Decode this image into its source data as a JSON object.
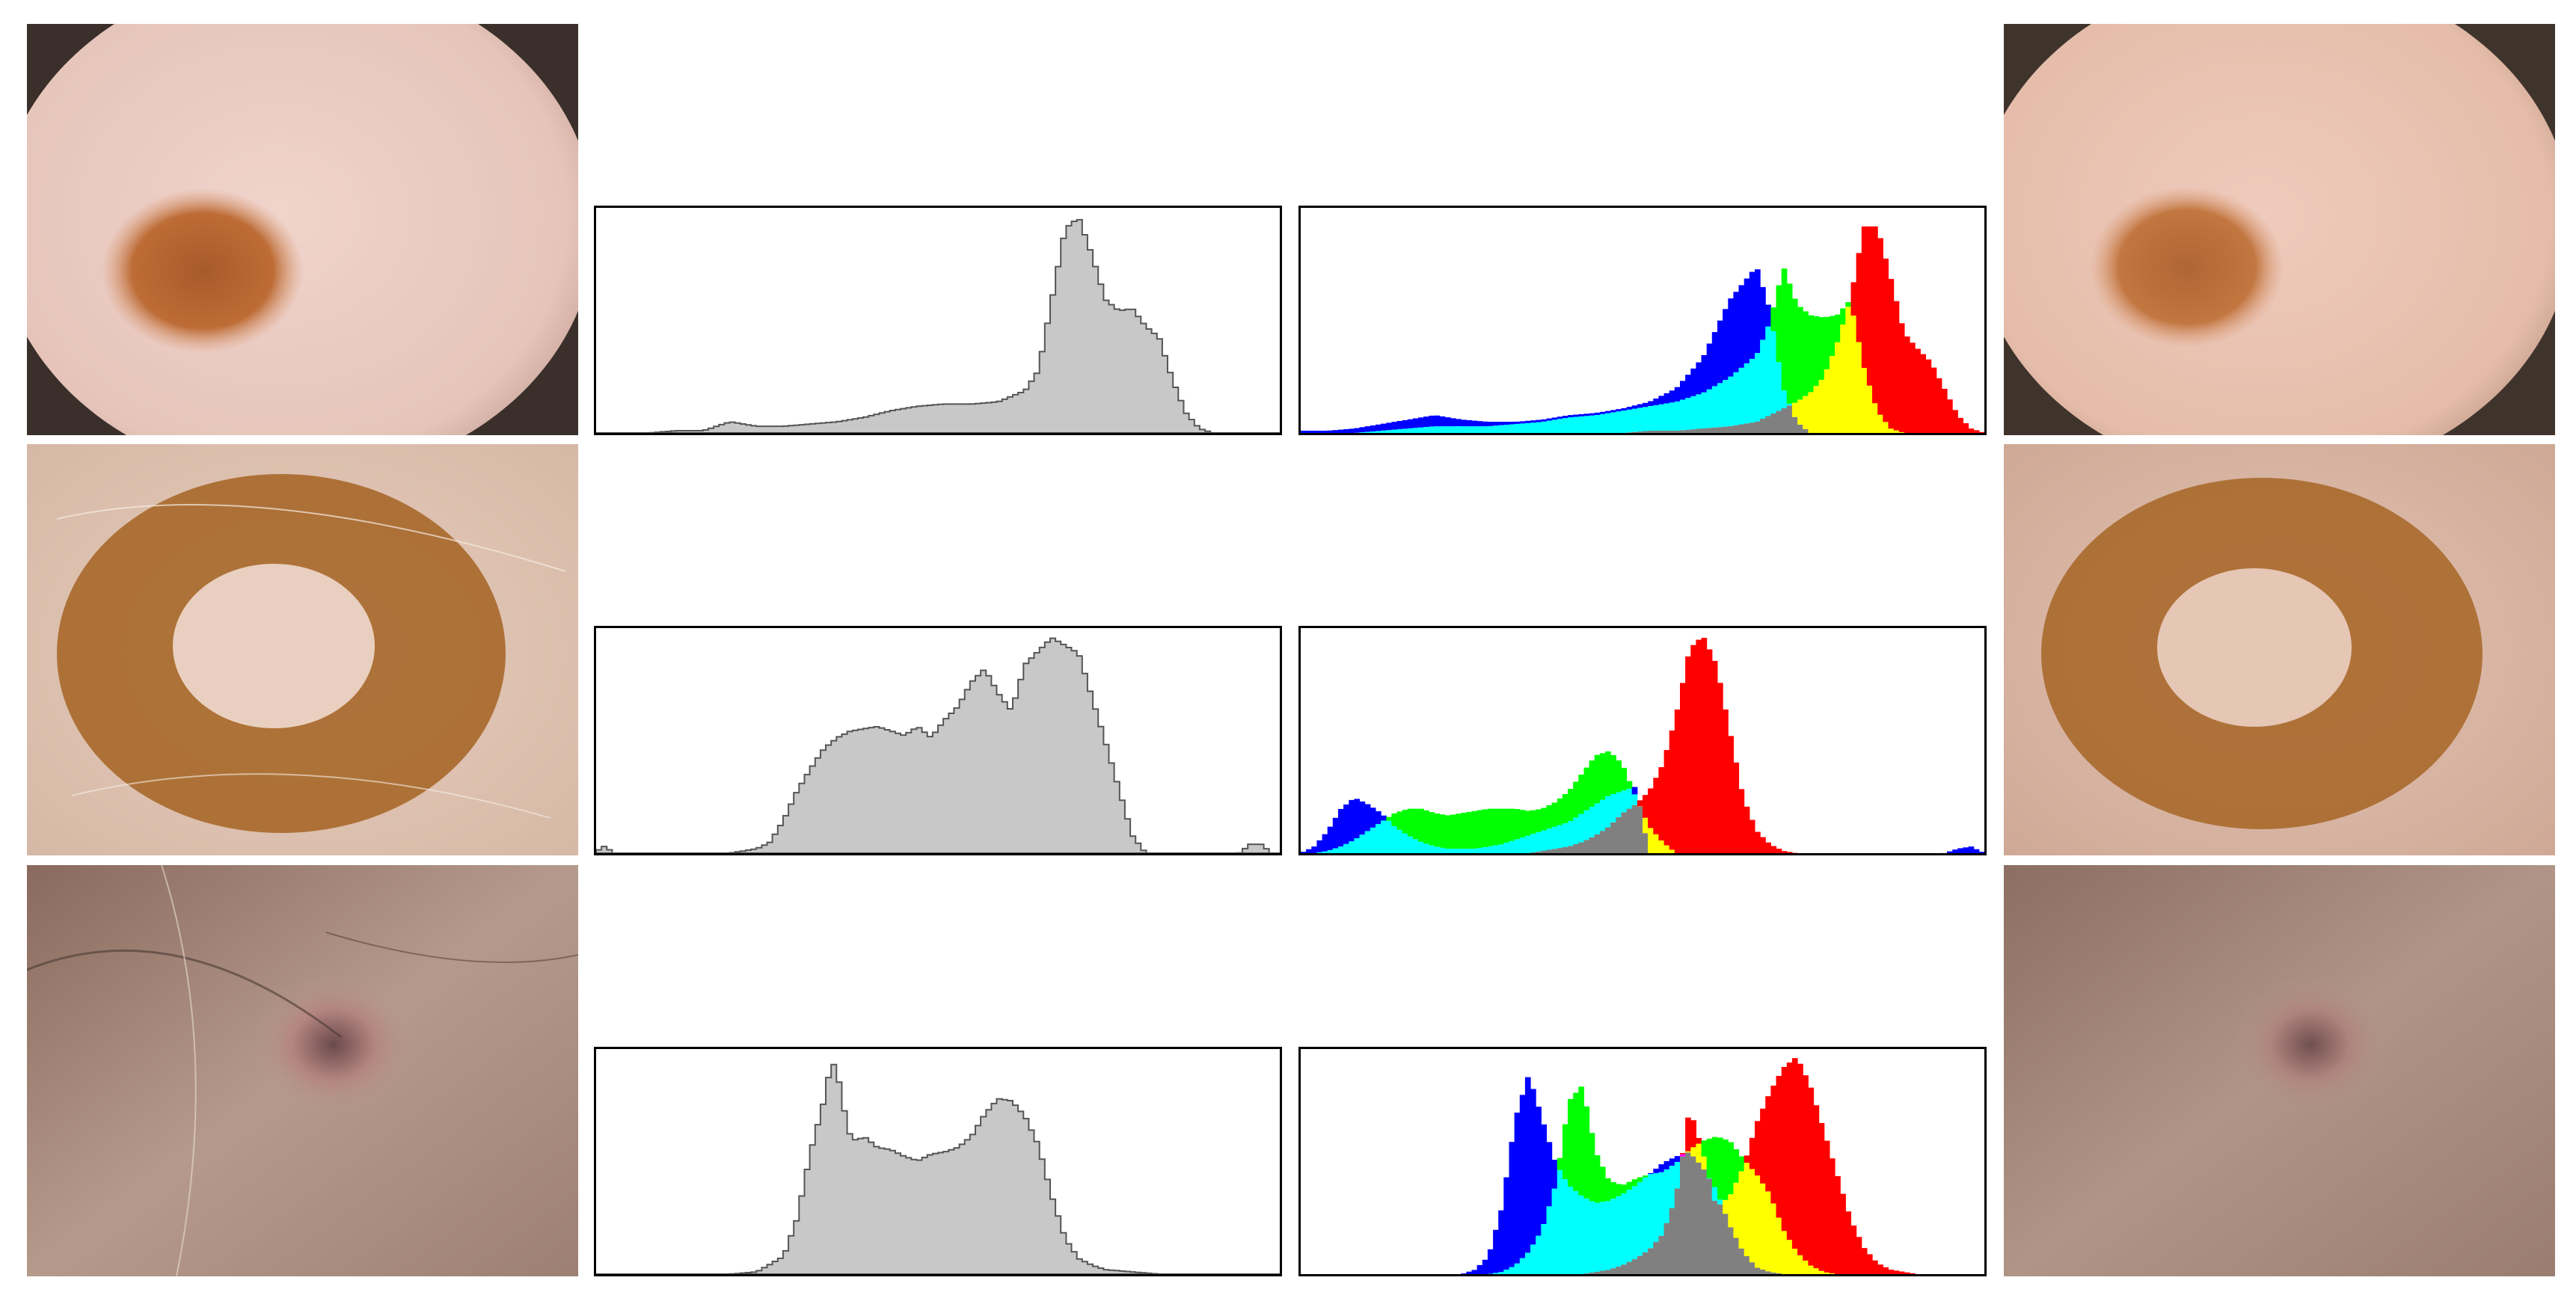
{
  "figure": {
    "rows": [
      {
        "case": "mole-dotted-patch"
      },
      {
        "case": "mole-ring-pattern"
      },
      {
        "case": "raised-lesion-with-hairs"
      }
    ]
  },
  "colors": {
    "gray_fill": "#c8c8c8",
    "gray_line": "#555555",
    "blue": "#0000ff",
    "cyan": "#00ffff",
    "green": "#00ff00",
    "yellow": "#ffff00",
    "red": "#ff0000",
    "magenta": "#ff00ff",
    "overlap_gray": "#808080"
  },
  "chart_data": [
    {
      "type": "area",
      "name": "row1-gray",
      "xlim": [
        0,
        255
      ],
      "x": [
        0,
        10,
        20,
        30,
        40,
        50,
        60,
        70,
        80,
        90,
        100,
        110,
        120,
        130,
        140,
        150,
        160,
        165,
        170,
        175,
        180,
        185,
        190,
        195,
        200,
        205,
        210,
        215,
        220,
        225,
        230,
        240,
        255
      ],
      "values": [
        0,
        0,
        0,
        1,
        1,
        5,
        3,
        3,
        4,
        5,
        7,
        10,
        12,
        13,
        13,
        14,
        19,
        28,
        60,
        92,
        97,
        80,
        60,
        55,
        56,
        48,
        43,
        24,
        9,
        2,
        0,
        0,
        0
      ]
    },
    {
      "type": "area",
      "name": "row1-rgb",
      "xlim": [
        0,
        255
      ],
      "x": [
        0,
        10,
        20,
        30,
        40,
        50,
        60,
        70,
        80,
        90,
        100,
        110,
        120,
        130,
        140,
        150,
        160,
        170,
        175,
        180,
        185,
        190,
        195,
        200,
        205,
        210,
        215,
        220,
        225,
        230,
        235,
        240,
        245,
        250,
        255
      ],
      "series": [
        {
          "name": "blue",
          "values": [
            1,
            1,
            2,
            4,
            6,
            8,
            6,
            5,
            5,
            6,
            8,
            9,
            11,
            14,
            20,
            34,
            60,
            75,
            55,
            20,
            5,
            0,
            0,
            0,
            0,
            0,
            0,
            0,
            0,
            0,
            0,
            0,
            0,
            0,
            0
          ]
        },
        {
          "name": "green",
          "values": [
            0,
            0,
            0,
            1,
            2,
            3,
            3,
            3,
            4,
            5,
            7,
            8,
            10,
            12,
            14,
            18,
            25,
            35,
            50,
            75,
            58,
            53,
            52,
            53,
            60,
            30,
            10,
            2,
            0,
            0,
            0,
            0,
            0,
            0,
            0
          ]
        },
        {
          "name": "red",
          "values": [
            0,
            0,
            0,
            0,
            0,
            0,
            0,
            0,
            0,
            0,
            0,
            0,
            0,
            1,
            1,
            2,
            3,
            5,
            8,
            11,
            14,
            18,
            25,
            40,
            60,
            93,
            93,
            70,
            45,
            38,
            32,
            20,
            8,
            2,
            0
          ]
        }
      ]
    },
    {
      "type": "area",
      "name": "row2-gray",
      "xlim": [
        0,
        255
      ],
      "x": [
        0,
        2,
        4,
        6,
        10,
        40,
        50,
        60,
        65,
        70,
        75,
        80,
        85,
        90,
        95,
        100,
        105,
        110,
        115,
        120,
        125,
        130,
        135,
        140,
        145,
        150,
        155,
        160,
        170,
        180,
        190,
        200,
        205,
        210,
        215,
        220,
        230,
        240,
        244,
        248,
        252,
        255
      ],
      "values": [
        0,
        3,
        3,
        0,
        0,
        0,
        0,
        2,
        5,
        15,
        28,
        38,
        47,
        52,
        55,
        56,
        57,
        55,
        53,
        57,
        52,
        60,
        66,
        77,
        83,
        72,
        64,
        85,
        97,
        90,
        50,
        8,
        0,
        0,
        0,
        0,
        0,
        0,
        4,
        4,
        0,
        0
      ]
    },
    {
      "type": "area",
      "name": "row2-rgb",
      "xlim": [
        0,
        255
      ],
      "x": [
        0,
        5,
        10,
        15,
        20,
        25,
        30,
        35,
        40,
        45,
        50,
        55,
        60,
        65,
        70,
        75,
        80,
        85,
        90,
        95,
        100,
        105,
        110,
        115,
        120,
        125,
        130,
        135,
        140,
        145,
        150,
        155,
        160,
        165,
        170,
        175,
        180,
        185,
        190,
        195,
        200,
        205,
        210,
        215,
        220,
        225,
        230,
        235,
        240,
        245,
        250,
        255
      ],
      "series": [
        {
          "name": "blue",
          "values": [
            0,
            3,
            10,
            20,
            25,
            22,
            18,
            12,
            8,
            5,
            3,
            2,
            2,
            2,
            3,
            4,
            6,
            8,
            10,
            12,
            14,
            18,
            22,
            26,
            28,
            30,
            0,
            0,
            0,
            0,
            0,
            0,
            0,
            0,
            0,
            0,
            0,
            0,
            0,
            0,
            0,
            0,
            0,
            0,
            0,
            0,
            0,
            0,
            0,
            2,
            3,
            0
          ]
        },
        {
          "name": "green",
          "values": [
            0,
            0,
            1,
            3,
            6,
            10,
            14,
            18,
            20,
            20,
            18,
            17,
            18,
            19,
            20,
            20,
            20,
            19,
            20,
            23,
            28,
            36,
            44,
            46,
            40,
            25,
            12,
            5,
            0,
            0,
            0,
            0,
            0,
            0,
            0,
            0,
            0,
            0,
            0,
            0,
            0,
            0,
            0,
            0,
            0,
            0,
            0,
            0,
            0,
            0,
            0,
            0
          ]
        },
        {
          "name": "red",
          "values": [
            0,
            0,
            0,
            0,
            0,
            0,
            0,
            0,
            0,
            0,
            0,
            0,
            0,
            0,
            0,
            0,
            0,
            0,
            1,
            2,
            3,
            5,
            8,
            12,
            18,
            22,
            28,
            40,
            62,
            92,
            98,
            85,
            55,
            25,
            10,
            4,
            1,
            0,
            0,
            0,
            0,
            0,
            0,
            0,
            0,
            0,
            0,
            0,
            0,
            0,
            0,
            0
          ]
        }
      ]
    },
    {
      "type": "area",
      "name": "row3-gray",
      "xlim": [
        0,
        255
      ],
      "x": [
        0,
        50,
        60,
        70,
        75,
        80,
        85,
        88,
        91,
        94,
        97,
        100,
        105,
        110,
        115,
        120,
        125,
        130,
        135,
        140,
        145,
        150,
        155,
        160,
        165,
        170,
        175,
        180,
        185,
        190,
        200,
        210,
        220,
        255
      ],
      "values": [
        0,
        0,
        1,
        8,
        25,
        55,
        78,
        97,
        85,
        64,
        60,
        62,
        57,
        56,
        53,
        51,
        54,
        55,
        57,
        62,
        72,
        79,
        78,
        71,
        58,
        35,
        16,
        7,
        4,
        2,
        1,
        0,
        0,
        0
      ]
    },
    {
      "type": "area",
      "name": "row3-rgb",
      "xlim": [
        0,
        255
      ],
      "x": [
        0,
        60,
        65,
        70,
        75,
        80,
        85,
        90,
        95,
        100,
        105,
        110,
        115,
        120,
        125,
        130,
        135,
        140,
        145,
        150,
        155,
        160,
        165,
        170,
        175,
        180,
        185,
        190,
        195,
        200,
        205,
        210,
        215,
        220,
        225,
        230,
        235,
        240,
        245,
        255
      ],
      "series": [
        {
          "name": "blue",
          "values": [
            0,
            0,
            2,
            8,
            30,
            70,
            90,
            70,
            50,
            40,
            35,
            32,
            33,
            36,
            40,
            45,
            50,
            53,
            55,
            48,
            38,
            22,
            10,
            3,
            1,
            0,
            0,
            0,
            0,
            0,
            0,
            0,
            0,
            0,
            0,
            0,
            0,
            0,
            0,
            0
          ]
        },
        {
          "name": "green",
          "values": [
            0,
            0,
            0,
            0,
            1,
            4,
            10,
            20,
            40,
            78,
            85,
            55,
            42,
            40,
            43,
            45,
            46,
            50,
            56,
            60,
            62,
            60,
            52,
            45,
            36,
            20,
            10,
            4,
            1,
            0,
            0,
            0,
            0,
            0,
            0,
            0,
            0,
            0,
            0,
            0
          ]
        },
        {
          "name": "red",
          "values": [
            0,
            0,
            0,
            0,
            0,
            0,
            0,
            0,
            0,
            0,
            0,
            1,
            2,
            4,
            7,
            11,
            18,
            35,
            75,
            55,
            30,
            35,
            48,
            68,
            82,
            93,
            98,
            85,
            65,
            45,
            25,
            12,
            5,
            2,
            1,
            0,
            0,
            0,
            0,
            0
          ]
        }
      ]
    }
  ]
}
